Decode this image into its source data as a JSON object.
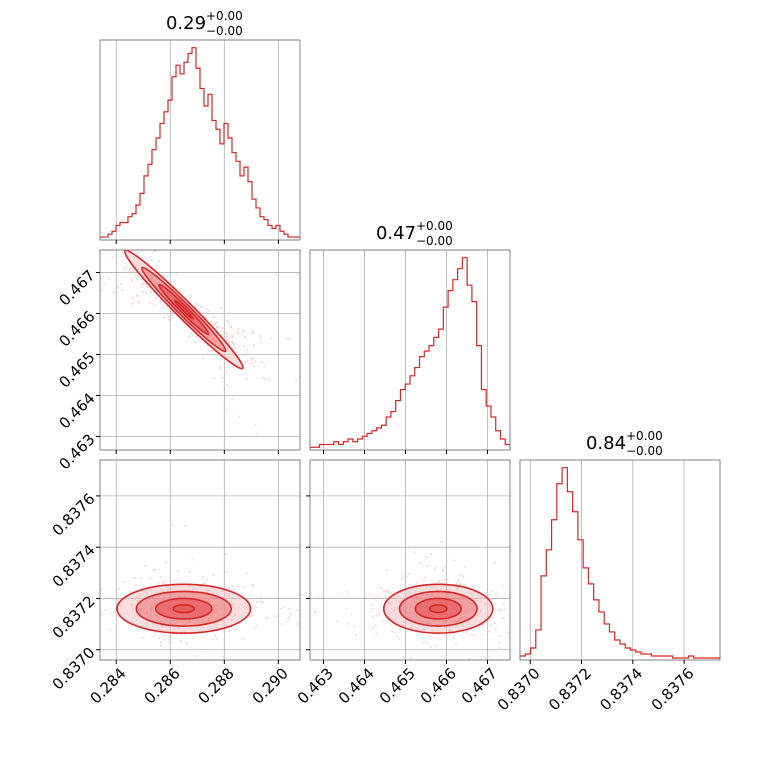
{
  "colors": {
    "line": "#d62728",
    "fill": "#e8595b",
    "fill_light": "#f6c3c4",
    "grid": "#b0b0b0",
    "frame": "#808080"
  },
  "chart_data": {
    "type": "corner",
    "parameters": [
      "",
      "",
      ""
    ],
    "titles": [
      {
        "value": "0.29",
        "plus": "+0.00",
        "minus": "−0.00"
      },
      {
        "value": "0.47",
        "plus": "+0.00",
        "minus": "−0.00"
      },
      {
        "value": "0.84",
        "plus": "+0.00",
        "minus": "−0.00"
      }
    ],
    "ranges": [
      [
        0.2834,
        0.2908
      ],
      [
        0.46267,
        0.46755
      ],
      [
        0.83696,
        0.83774
      ]
    ],
    "ticks": [
      [
        0.284,
        0.286,
        0.288,
        0.29
      ],
      [
        0.463,
        0.464,
        0.465,
        0.466,
        0.467
      ],
      [
        0.837,
        0.8372,
        0.8374,
        0.8376
      ]
    ],
    "tick_labels": [
      [
        "0.284",
        "0.286",
        "0.288",
        "0.290"
      ],
      [
        "0.463",
        "0.464",
        "0.465",
        "0.466",
        "0.467"
      ],
      [
        "0.8370",
        "0.8372",
        "0.8374",
        "0.8376"
      ]
    ],
    "histograms": [
      {
        "counts": [
          1,
          1,
          2,
          3,
          5,
          6,
          6,
          8,
          9,
          12,
          16,
          22,
          26,
          31,
          35,
          40,
          44,
          48,
          56,
          60,
          57,
          61,
          64,
          66,
          59,
          52,
          46,
          50,
          41,
          38,
          33,
          40,
          35,
          30,
          27,
          22,
          25,
          20,
          14,
          11,
          8,
          7,
          5,
          4,
          5,
          3,
          2,
          1,
          1,
          1
        ],
        "grid": true
      },
      {
        "counts": [
          1,
          1,
          2,
          2,
          2,
          3,
          2,
          3,
          4,
          3,
          4,
          5,
          6,
          7,
          8,
          9,
          12,
          14,
          18,
          22,
          24,
          27,
          30,
          34,
          36,
          38,
          41,
          44,
          52,
          58,
          62,
          66,
          70,
          60,
          54,
          38,
          22,
          16,
          12,
          7,
          4,
          2
        ],
        "grid": true
      },
      {
        "counts": [
          2,
          3,
          6,
          15,
          42,
          55,
          70,
          88,
          96,
          84,
          74,
          60,
          46,
          38,
          30,
          24,
          18,
          14,
          10,
          8,
          6,
          5,
          4,
          3,
          3,
          2,
          2,
          2,
          2,
          1,
          1,
          1,
          2,
          1,
          1,
          1,
          1,
          1
        ],
        "grid": true
      }
    ],
    "density_centers": [
      {
        "x": 0.2865,
        "y": 0.4661,
        "x_spread": 0.0012,
        "y_spread": 0.0006
      },
      {
        "x": 0.2865,
        "y": 0.83716,
        "x_spread": 0.0013,
        "y_spread": 5e-05
      },
      {
        "x": 0.4658,
        "y": 0.83716,
        "x_spread": 0.0007,
        "y_spread": 5e-05
      }
    ],
    "grid": true,
    "legend": "none"
  }
}
